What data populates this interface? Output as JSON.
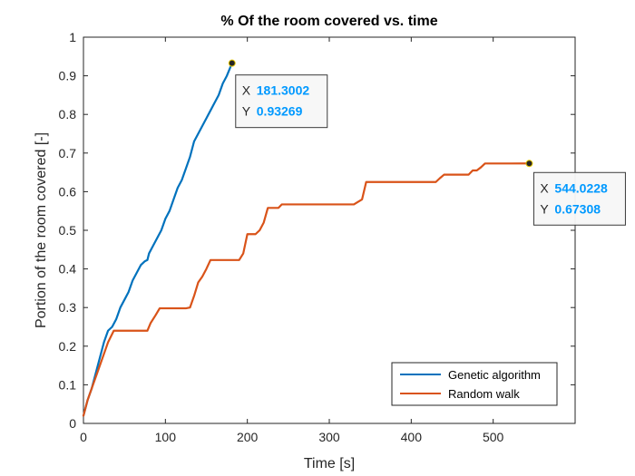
{
  "chart_data": {
    "type": "line",
    "title": "% Of the room covered vs. time",
    "xlabel": "Time [s]",
    "ylabel": "Portion of the room covered [-]",
    "xlim": [
      0,
      600
    ],
    "ylim": [
      0,
      1
    ],
    "xticks": [
      0,
      100,
      200,
      300,
      400,
      500
    ],
    "yticks": [
      0,
      0.1,
      0.2,
      0.3,
      0.4,
      0.5,
      0.6,
      0.7,
      0.8,
      0.9,
      1
    ],
    "ytick_labels": [
      "0",
      "0.1",
      "0.2",
      "0.3",
      "0.4",
      "0.5",
      "0.6",
      "0.7",
      "0.8",
      "0.9",
      "1"
    ],
    "grid": false,
    "legend_position": "bottom-right",
    "series": [
      {
        "name": "Genetic algorithm",
        "color": "#0072BD",
        "x": [
          0,
          5,
          10,
          15,
          20,
          25,
          30,
          35,
          40,
          45,
          50,
          55,
          60,
          65,
          70,
          75,
          78,
          80,
          85,
          90,
          95,
          100,
          105,
          110,
          115,
          120,
          125,
          130,
          135,
          140,
          145,
          150,
          155,
          160,
          165,
          170,
          175,
          181.3002
        ],
        "y": [
          0.02,
          0.06,
          0.09,
          0.13,
          0.17,
          0.21,
          0.24,
          0.25,
          0.27,
          0.3,
          0.32,
          0.34,
          0.37,
          0.39,
          0.41,
          0.42,
          0.423,
          0.44,
          0.46,
          0.48,
          0.5,
          0.53,
          0.55,
          0.58,
          0.61,
          0.63,
          0.66,
          0.69,
          0.73,
          0.75,
          0.77,
          0.79,
          0.81,
          0.83,
          0.85,
          0.88,
          0.9,
          0.93269
        ]
      },
      {
        "name": "Random walk",
        "color": "#D95319",
        "x": [
          0,
          5,
          10,
          20,
          30,
          37,
          50,
          60,
          70,
          78,
          82,
          88,
          93,
          110,
          125,
          130,
          135,
          140,
          145,
          150,
          155,
          160,
          170,
          180,
          190,
          195,
          200,
          205,
          210,
          215,
          220,
          225,
          230,
          238,
          242,
          260,
          300,
          330,
          340,
          345,
          350,
          370,
          400,
          430,
          435,
          440,
          470,
          475,
          480,
          485,
          490,
          500,
          520,
          544.0228
        ],
        "y": [
          0.02,
          0.06,
          0.09,
          0.15,
          0.21,
          0.24,
          0.24,
          0.24,
          0.24,
          0.24,
          0.26,
          0.28,
          0.298,
          0.298,
          0.298,
          0.3,
          0.33,
          0.365,
          0.38,
          0.4,
          0.423,
          0.423,
          0.423,
          0.423,
          0.423,
          0.44,
          0.49,
          0.49,
          0.49,
          0.5,
          0.52,
          0.558,
          0.558,
          0.558,
          0.567,
          0.567,
          0.567,
          0.567,
          0.58,
          0.625,
          0.625,
          0.625,
          0.625,
          0.625,
          0.635,
          0.644,
          0.644,
          0.655,
          0.655,
          0.663,
          0.673,
          0.673,
          0.673,
          0.67308
        ]
      }
    ],
    "datatips": [
      {
        "series": "Genetic algorithm",
        "x_key": "X",
        "y_key": "Y",
        "x_value": "181.3002",
        "y_value": "0.93269",
        "x": 181.3002,
        "y": 0.93269
      },
      {
        "series": "Random walk",
        "x_key": "X",
        "y_key": "Y",
        "x_value": "544.0228",
        "y_value": "0.67308",
        "x": 544.0228,
        "y": 0.67308
      }
    ],
    "tip_value_color": "#0099FF"
  }
}
